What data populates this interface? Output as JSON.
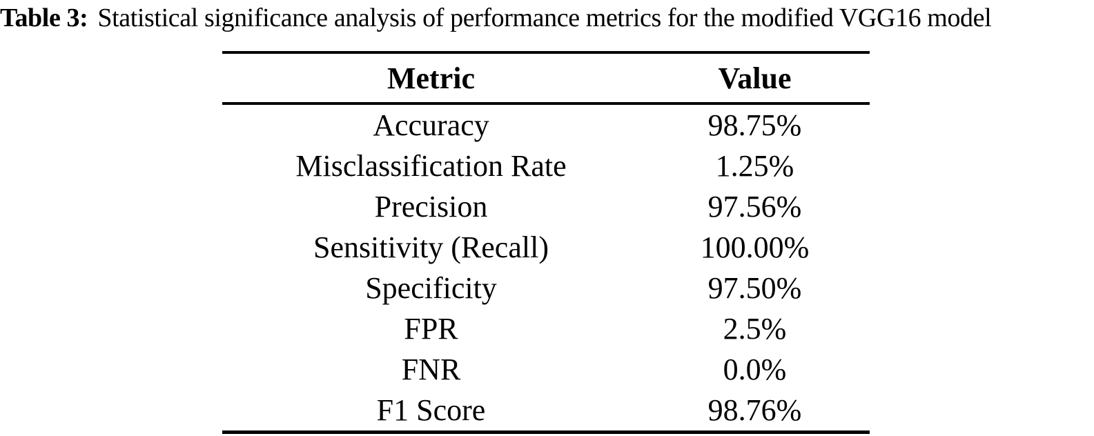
{
  "page": {
    "background": "#ffffff",
    "text_color": "#000000"
  },
  "caption": {
    "label": "Table 3:",
    "text": "Statistical significance analysis of performance metrics for the modified VGG16 model"
  },
  "chart_data": {
    "type": "table",
    "title": "Table 3: Statistical significance analysis of performance metrics for the modified VGG16 model",
    "columns": [
      "Metric",
      "Value"
    ],
    "rows": [
      [
        "Accuracy",
        "98.75%"
      ],
      [
        "Misclassification Rate",
        "1.25%"
      ],
      [
        "Precision",
        "97.56%"
      ],
      [
        "Sensitivity (Recall)",
        "100.00%"
      ],
      [
        "Specificity",
        "97.50%"
      ],
      [
        "FPR",
        "2.5%"
      ],
      [
        "FNR",
        "0.0%"
      ],
      [
        "F1 Score",
        "98.76%"
      ]
    ]
  }
}
